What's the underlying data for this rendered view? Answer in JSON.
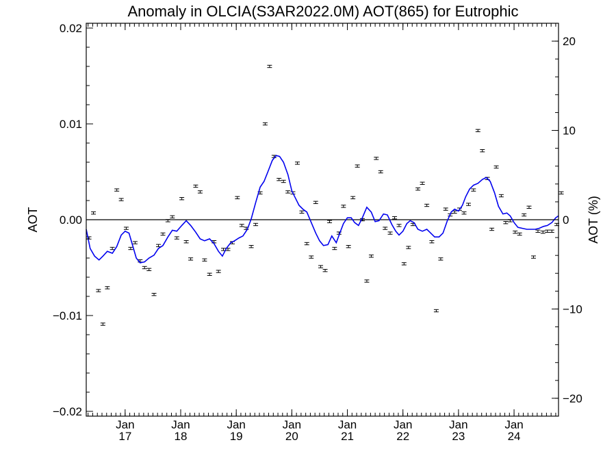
{
  "chart_data": {
    "type": "scatter",
    "title": "Anomaly in OLCIA(S3AR2022.0M) AOT(865) for Eutrophic",
    "ylabel": "AOT",
    "ylabel_right": "AOT (%)",
    "xlim": [
      2016.3,
      2024.8
    ],
    "ylim": [
      -0.0205,
      0.0205
    ],
    "ylim_right": [
      -22,
      22
    ],
    "x_ticks": [
      {
        "value": 2017.0,
        "month": "Jan",
        "year": "17"
      },
      {
        "value": 2018.0,
        "month": "Jan",
        "year": "18"
      },
      {
        "value": 2019.0,
        "month": "Jan",
        "year": "19"
      },
      {
        "value": 2020.0,
        "month": "Jan",
        "year": "20"
      },
      {
        "value": 2021.0,
        "month": "Jan",
        "year": "21"
      },
      {
        "value": 2022.0,
        "month": "Jan",
        "year": "22"
      },
      {
        "value": 2023.0,
        "month": "Jan",
        "year": "23"
      },
      {
        "value": 2024.0,
        "month": "Jan",
        "year": "24"
      }
    ],
    "y_ticks": [
      {
        "value": 0.02,
        "label": "0.02"
      },
      {
        "value": 0.01,
        "label": "0.01"
      },
      {
        "value": 0.0,
        "label": "0.00"
      },
      {
        "value": -0.01,
        "label": "−0.01"
      },
      {
        "value": -0.02,
        "label": "−0.02"
      }
    ],
    "y_ticks_right": [
      {
        "value": 20,
        "label": "20"
      },
      {
        "value": 10,
        "label": "10"
      },
      {
        "value": 0,
        "label": "0"
      },
      {
        "value": -10,
        "label": "−10"
      },
      {
        "value": -20,
        "label": "−20"
      }
    ],
    "series": [
      {
        "type": "scatter_errorbar",
        "color": "#000000",
        "points": [
          [
            2016.35,
            -0.0019
          ],
          [
            2016.43,
            0.0007
          ],
          [
            2016.52,
            -0.0074
          ],
          [
            2016.6,
            -0.0109
          ],
          [
            2016.68,
            -0.0071
          ],
          [
            2016.77,
            -0.003
          ],
          [
            2016.85,
            0.0031
          ],
          [
            2016.93,
            0.0021
          ],
          [
            2017.02,
            -0.0009
          ],
          [
            2017.1,
            -0.003
          ],
          [
            2017.18,
            -0.0024
          ],
          [
            2017.27,
            -0.0043
          ],
          [
            2017.35,
            -0.005
          ],
          [
            2017.43,
            -0.0052
          ],
          [
            2017.52,
            -0.0078
          ],
          [
            2017.6,
            -0.0027
          ],
          [
            2017.68,
            -0.0015
          ],
          [
            2017.77,
            -0.0001
          ],
          [
            2017.85,
            0.0003
          ],
          [
            2017.93,
            -0.0019
          ],
          [
            2018.02,
            0.0022
          ],
          [
            2018.1,
            -0.0023
          ],
          [
            2018.18,
            -0.0041
          ],
          [
            2018.27,
            0.0035
          ],
          [
            2018.35,
            0.0029
          ],
          [
            2018.43,
            -0.0042
          ],
          [
            2018.52,
            -0.0057
          ],
          [
            2018.6,
            -0.0023
          ],
          [
            2018.68,
            -0.0054
          ],
          [
            2018.77,
            -0.0031
          ],
          [
            2018.85,
            -0.0031
          ],
          [
            2018.93,
            -0.0024
          ],
          [
            2019.02,
            0.0023
          ],
          [
            2019.1,
            -0.0006
          ],
          [
            2019.18,
            -0.0009
          ],
          [
            2019.27,
            -0.0028
          ],
          [
            2019.35,
            -0.0005
          ],
          [
            2019.43,
            0.0028
          ],
          [
            2019.52,
            0.01
          ],
          [
            2019.6,
            0.016
          ],
          [
            2019.68,
            0.0066
          ],
          [
            2019.77,
            0.0042
          ],
          [
            2019.85,
            0.004
          ],
          [
            2019.93,
            0.0029
          ],
          [
            2020.02,
            0.0028
          ],
          [
            2020.1,
            0.0059
          ],
          [
            2020.18,
            0.0008
          ],
          [
            2020.27,
            -0.0025
          ],
          [
            2020.35,
            -0.0039
          ],
          [
            2020.43,
            0.0018
          ],
          [
            2020.52,
            -0.0049
          ],
          [
            2020.6,
            -0.0053
          ],
          [
            2020.68,
            -0.0002
          ],
          [
            2020.77,
            -0.003
          ],
          [
            2020.85,
            -0.0014
          ],
          [
            2020.93,
            0.0014
          ],
          [
            2021.02,
            -0.0028
          ],
          [
            2021.1,
            0.0023
          ],
          [
            2021.18,
            0.0056
          ],
          [
            2021.27,
            0.0
          ],
          [
            2021.35,
            -0.0064
          ],
          [
            2021.43,
            -0.0038
          ],
          [
            2021.52,
            0.0064
          ],
          [
            2021.6,
            0.005
          ],
          [
            2021.68,
            -0.0009
          ],
          [
            2021.77,
            -0.0014
          ],
          [
            2021.85,
            0.0002
          ],
          [
            2021.93,
            -0.0006
          ],
          [
            2022.02,
            -0.0046
          ],
          [
            2022.1,
            -0.0029
          ],
          [
            2022.18,
            -0.0005
          ],
          [
            2022.27,
            0.0032
          ],
          [
            2022.35,
            0.0038
          ],
          [
            2022.43,
            0.0015
          ],
          [
            2022.52,
            -0.0023
          ],
          [
            2022.6,
            -0.0095
          ],
          [
            2022.68,
            -0.0041
          ],
          [
            2022.77,
            0.0011
          ],
          [
            2022.85,
            0.0005
          ],
          [
            2022.93,
            0.0008
          ],
          [
            2023.02,
            0.0011
          ],
          [
            2023.1,
            0.0007
          ],
          [
            2023.18,
            0.0016
          ],
          [
            2023.27,
            0.0031
          ],
          [
            2023.35,
            0.0093
          ],
          [
            2023.43,
            0.0072
          ],
          [
            2023.52,
            0.0043
          ],
          [
            2023.6,
            -0.001
          ],
          [
            2023.68,
            0.0055
          ],
          [
            2023.77,
            0.0025
          ],
          [
            2023.85,
            -0.0003
          ],
          [
            2023.93,
            -0.0001
          ],
          [
            2024.02,
            -0.0013
          ],
          [
            2024.1,
            -0.0015
          ],
          [
            2024.18,
            0.0005
          ],
          [
            2024.27,
            0.0013
          ],
          [
            2024.35,
            -0.0039
          ],
          [
            2024.43,
            -0.0012
          ],
          [
            2024.52,
            -0.0013
          ],
          [
            2024.6,
            -0.0012
          ],
          [
            2024.68,
            -0.0012
          ],
          [
            2024.77,
            -0.0005
          ],
          [
            2024.85,
            0.0028
          ]
        ]
      },
      {
        "type": "line",
        "color": "#0000ee",
        "points": [
          [
            2016.3,
            -0.001
          ],
          [
            2016.37,
            -0.003
          ],
          [
            2016.45,
            -0.0038
          ],
          [
            2016.53,
            -0.0042
          ],
          [
            2016.6,
            -0.0038
          ],
          [
            2016.68,
            -0.0033
          ],
          [
            2016.77,
            -0.0035
          ],
          [
            2016.85,
            -0.0028
          ],
          [
            2016.93,
            -0.0016
          ],
          [
            2017.0,
            -0.0012
          ],
          [
            2017.07,
            -0.0014
          ],
          [
            2017.13,
            -0.0026
          ],
          [
            2017.2,
            -0.004
          ],
          [
            2017.27,
            -0.0045
          ],
          [
            2017.35,
            -0.0044
          ],
          [
            2017.43,
            -0.004
          ],
          [
            2017.52,
            -0.0037
          ],
          [
            2017.6,
            -0.003
          ],
          [
            2017.68,
            -0.0027
          ],
          [
            2017.77,
            -0.0018
          ],
          [
            2017.85,
            -0.0011
          ],
          [
            2017.93,
            -0.0012
          ],
          [
            2018.02,
            -0.0006
          ],
          [
            2018.1,
            -0.0001
          ],
          [
            2018.18,
            -0.0006
          ],
          [
            2018.27,
            -0.0013
          ],
          [
            2018.35,
            -0.002
          ],
          [
            2018.43,
            -0.0022
          ],
          [
            2018.52,
            -0.002
          ],
          [
            2018.6,
            -0.0025
          ],
          [
            2018.68,
            -0.0033
          ],
          [
            2018.75,
            -0.0038
          ],
          [
            2018.82,
            -0.003
          ],
          [
            2018.9,
            -0.0024
          ],
          [
            2018.97,
            -0.0022
          ],
          [
            2019.05,
            -0.0019
          ],
          [
            2019.12,
            -0.0017
          ],
          [
            2019.2,
            -0.001
          ],
          [
            2019.27,
            0.0001
          ],
          [
            2019.35,
            0.0018
          ],
          [
            2019.43,
            0.0034
          ],
          [
            2019.5,
            0.004
          ],
          [
            2019.57,
            0.005
          ],
          [
            2019.65,
            0.0062
          ],
          [
            2019.72,
            0.0067
          ],
          [
            2019.78,
            0.0066
          ],
          [
            2019.85,
            0.006
          ],
          [
            2019.93,
            0.0047
          ],
          [
            2020.0,
            0.003
          ],
          [
            2020.07,
            0.0022
          ],
          [
            2020.13,
            0.0015
          ],
          [
            2020.2,
            0.0011
          ],
          [
            2020.27,
            0.0008
          ],
          [
            2020.35,
            -0.0003
          ],
          [
            2020.43,
            -0.0014
          ],
          [
            2020.5,
            -0.0022
          ],
          [
            2020.57,
            -0.0027
          ],
          [
            2020.65,
            -0.0026
          ],
          [
            2020.72,
            -0.0017
          ],
          [
            2020.8,
            -0.0024
          ],
          [
            2020.87,
            -0.0013
          ],
          [
            2020.93,
            -0.0004
          ],
          [
            2021.0,
            0.0002
          ],
          [
            2021.07,
            0.0002
          ],
          [
            2021.13,
            -0.0003
          ],
          [
            2021.2,
            -0.0006
          ],
          [
            2021.27,
            0.0002
          ],
          [
            2021.35,
            0.0013
          ],
          [
            2021.43,
            0.0008
          ],
          [
            2021.5,
            -0.0002
          ],
          [
            2021.57,
            -0.0001
          ],
          [
            2021.65,
            0.0006
          ],
          [
            2021.72,
            0.0005
          ],
          [
            2021.8,
            -0.0005
          ],
          [
            2021.87,
            -0.0012
          ],
          [
            2021.93,
            -0.0016
          ],
          [
            2022.0,
            -0.0012
          ],
          [
            2022.07,
            -0.0004
          ],
          [
            2022.13,
            -0.0001
          ],
          [
            2022.2,
            -0.0003
          ],
          [
            2022.27,
            -0.001
          ],
          [
            2022.35,
            -0.0012
          ],
          [
            2022.43,
            -0.001
          ],
          [
            2022.5,
            -0.0014
          ],
          [
            2022.57,
            -0.0018
          ],
          [
            2022.65,
            -0.0018
          ],
          [
            2022.72,
            -0.0014
          ],
          [
            2022.8,
            -0.0001
          ],
          [
            2022.87,
            0.0008
          ],
          [
            2022.93,
            0.0011
          ],
          [
            2023.0,
            0.0009
          ],
          [
            2023.07,
            0.0015
          ],
          [
            2023.13,
            0.0024
          ],
          [
            2023.2,
            0.0032
          ],
          [
            2023.27,
            0.0036
          ],
          [
            2023.35,
            0.0038
          ],
          [
            2023.43,
            0.0042
          ],
          [
            2023.5,
            0.0044
          ],
          [
            2023.57,
            0.004
          ],
          [
            2023.65,
            0.0028
          ],
          [
            2023.72,
            0.0014
          ],
          [
            2023.8,
            0.0006
          ],
          [
            2023.87,
            0.0007
          ],
          [
            2023.93,
            0.0004
          ],
          [
            2024.0,
            -0.0003
          ],
          [
            2024.07,
            -0.0008
          ],
          [
            2024.15,
            -0.0009
          ],
          [
            2024.23,
            -0.001
          ],
          [
            2024.3,
            -0.001
          ],
          [
            2024.38,
            -0.001
          ],
          [
            2024.45,
            -0.0009
          ],
          [
            2024.53,
            -0.0007
          ],
          [
            2024.6,
            -0.0006
          ],
          [
            2024.68,
            -0.0003
          ],
          [
            2024.75,
            0.0002
          ],
          [
            2024.8,
            0.0004
          ]
        ]
      }
    ],
    "reference_line": 0.0,
    "grid": false,
    "legend": "none",
    "error_bar_halfwidth": 0.00012
  }
}
